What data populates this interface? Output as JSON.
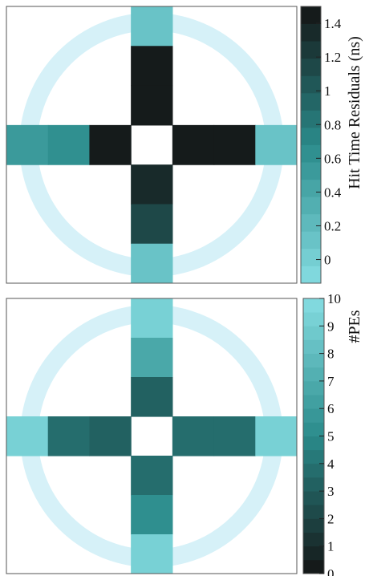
{
  "chart_data": [
    {
      "type": "heatmap",
      "grid": {
        "cols": 7,
        "rows": 7
      },
      "colorbar": {
        "label": "Hit Time Residuals (ns)",
        "range": [
          -0.14,
          1.5
        ],
        "ticks": [
          0,
          0.2,
          0.4,
          0.6,
          0.8,
          1,
          1.2,
          1.4
        ],
        "tick_labels": [
          "0",
          "0.2",
          "0.4",
          "0.6",
          "0.8",
          "1",
          "1.2",
          "1.4"
        ],
        "n_colors": 16
      },
      "cells": [
        {
          "col": 3,
          "row": 0,
          "value": 0.16
        },
        {
          "col": 3,
          "row": 1,
          "value": 1.5
        },
        {
          "col": 3,
          "row": 2,
          "value": 1.5
        },
        {
          "col": 0,
          "row": 3,
          "value": 0.57
        },
        {
          "col": 1,
          "row": 3,
          "value": 0.67
        },
        {
          "col": 2,
          "row": 3,
          "value": 1.5
        },
        {
          "col": 4,
          "row": 3,
          "value": 1.4
        },
        {
          "col": 5,
          "row": 3,
          "value": 1.42
        },
        {
          "col": 6,
          "row": 3,
          "value": 0.16
        },
        {
          "col": 3,
          "row": 4,
          "value": 1.32
        },
        {
          "col": 3,
          "row": 5,
          "value": 1.12
        },
        {
          "col": 3,
          "row": 6,
          "value": 0.16
        }
      ],
      "ring": true
    },
    {
      "type": "heatmap",
      "grid": {
        "cols": 7,
        "rows": 7
      },
      "colorbar": {
        "label": "#PEs",
        "range": [
          0,
          10
        ],
        "ticks": [
          0,
          1,
          2,
          3,
          4,
          5,
          6,
          7,
          8,
          9,
          10
        ],
        "tick_labels": [
          "0",
          "1",
          "2",
          "3",
          "4",
          "5",
          "6",
          "7",
          "8",
          "9",
          "10"
        ],
        "n_colors": 20
      },
      "cells": [
        {
          "col": 3,
          "row": 0,
          "value": 9.3
        },
        {
          "col": 3,
          "row": 1,
          "value": 6.8
        },
        {
          "col": 3,
          "row": 2,
          "value": 3.2
        },
        {
          "col": 0,
          "row": 3,
          "value": 9.3
        },
        {
          "col": 1,
          "row": 3,
          "value": 3.8
        },
        {
          "col": 2,
          "row": 3,
          "value": 3.1
        },
        {
          "col": 4,
          "row": 3,
          "value": 3.8
        },
        {
          "col": 5,
          "row": 3,
          "value": 3.9
        },
        {
          "col": 6,
          "row": 3,
          "value": 9.3
        },
        {
          "col": 3,
          "row": 4,
          "value": 3.6
        },
        {
          "col": 3,
          "row": 5,
          "value": 5.3
        },
        {
          "col": 3,
          "row": 6,
          "value": 9.3
        }
      ],
      "ring": true
    }
  ],
  "colors": {
    "ring": "#d6f1f8",
    "frame": "#555555",
    "gradient_high": "#86dde2",
    "gradient_mid": "#2a8b8b",
    "gradient_low": "#141414"
  }
}
